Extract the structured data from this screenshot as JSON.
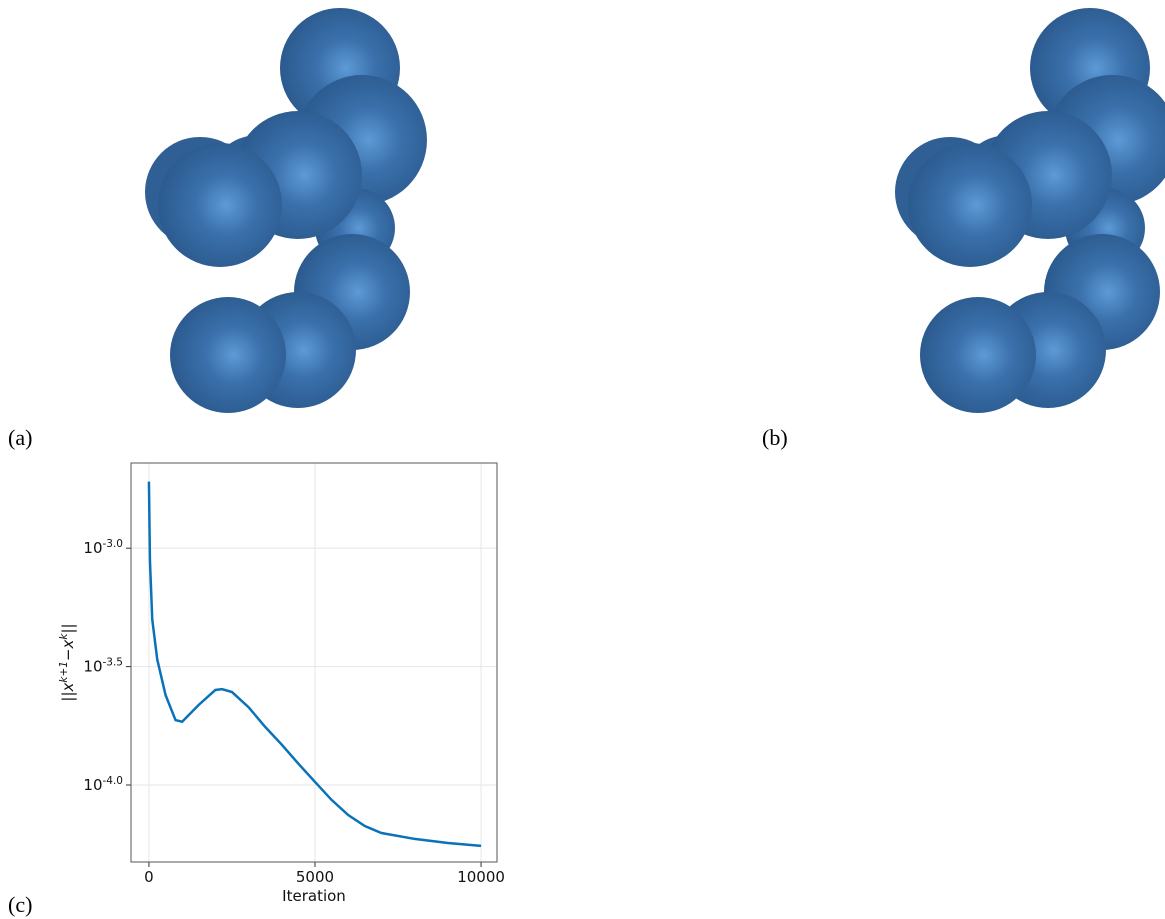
{
  "panels": {
    "a": "(a)",
    "b": "(b)",
    "c": "(c)"
  },
  "chart_data": {
    "type": "line",
    "x_label": "Iteration",
    "y_label": "||x^{k+1}−x^{k}||",
    "x": [
      0,
      30,
      100,
      250,
      500,
      800,
      1000,
      1500,
      2000,
      2200,
      2500,
      3000,
      3500,
      4000,
      4500,
      5000,
      5500,
      6000,
      6500,
      7000,
      8000,
      9000,
      10000
    ],
    "series": [
      {
        "color": "#0a72b8",
        "values": [
          0.00191,
          0.00089,
          0.0005,
          0.000339,
          0.00024,
          0.000188,
          0.000185,
          0.000218,
          0.000252,
          0.000254,
          0.000247,
          0.000213,
          0.000176,
          0.000148,
          0.000123,
          0.000103,
          8.65e-05,
          7.47e-05,
          6.71e-05,
          6.27e-05,
          5.92e-05,
          5.69e-05,
          5.53e-05
        ]
      }
    ],
    "xlim": [
      -540,
      10480
    ],
    "xticks": [
      0,
      5000,
      10000
    ],
    "ylog": true,
    "ylim": [
      4.73e-05,
      0.00229
    ],
    "yticks": [
      {
        "value": 0.001,
        "label": "10^-3.0"
      },
      {
        "value": 0.000316228,
        "label": "10^-3.5"
      },
      {
        "value": 0.0001,
        "label": "10^-4.0"
      }
    ],
    "grid": true
  }
}
